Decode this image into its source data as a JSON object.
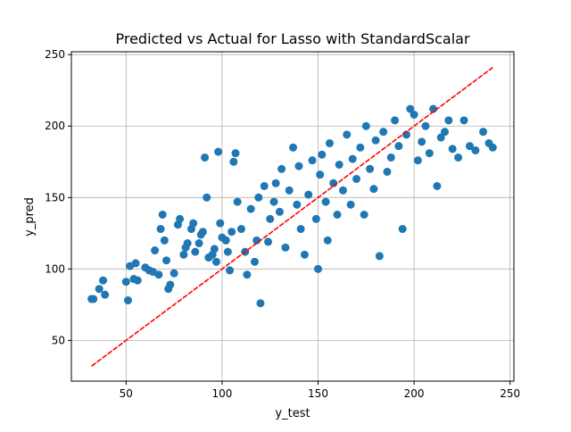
{
  "chart_data": {
    "type": "scatter",
    "title": "Predicted vs Actual for Lasso with StandardScalar",
    "xlabel": "y_test",
    "ylabel": "y_pred",
    "xlim": [
      21.5,
      252.0
    ],
    "ylim": [
      21.5,
      252.0
    ],
    "xticks": [
      50,
      100,
      150,
      200,
      250
    ],
    "yticks": [
      50,
      100,
      150,
      200,
      250
    ],
    "grid": true,
    "legend": "none",
    "colors": {
      "points": "#1f77b4",
      "fit_line": "#ff0000",
      "grid": "#b0b0b0"
    },
    "fit_line": {
      "x": [
        32,
        241
      ],
      "y": [
        32,
        241
      ],
      "style": "dashed"
    },
    "series": [
      {
        "values": [
          [
            32,
            79
          ],
          [
            33,
            79
          ],
          [
            36,
            86
          ],
          [
            38,
            92
          ],
          [
            39,
            82
          ],
          [
            50,
            91
          ],
          [
            51,
            78
          ],
          [
            52,
            102
          ],
          [
            54,
            93
          ],
          [
            55,
            104
          ],
          [
            56,
            92
          ],
          [
            60,
            101
          ],
          [
            62,
            99
          ],
          [
            64,
            98
          ],
          [
            65,
            113
          ],
          [
            67,
            96
          ],
          [
            68,
            128
          ],
          [
            69,
            138
          ],
          [
            70,
            120
          ],
          [
            71,
            106
          ],
          [
            72,
            86
          ],
          [
            73,
            89
          ],
          [
            75,
            97
          ],
          [
            77,
            131
          ],
          [
            78,
            135
          ],
          [
            80,
            110
          ],
          [
            81,
            115
          ],
          [
            82,
            118
          ],
          [
            84,
            128
          ],
          [
            85,
            132
          ],
          [
            86,
            112
          ],
          [
            88,
            118
          ],
          [
            89,
            124
          ],
          [
            90,
            126
          ],
          [
            91,
            178
          ],
          [
            92,
            150
          ],
          [
            93,
            108
          ],
          [
            95,
            110
          ],
          [
            96,
            114
          ],
          [
            97,
            105
          ],
          [
            98,
            182
          ],
          [
            99,
            132
          ],
          [
            100,
            122
          ],
          [
            102,
            120
          ],
          [
            103,
            112
          ],
          [
            104,
            99
          ],
          [
            105,
            126
          ],
          [
            106,
            175
          ],
          [
            107,
            181
          ],
          [
            108,
            147
          ],
          [
            110,
            128
          ],
          [
            112,
            112
          ],
          [
            113,
            96
          ],
          [
            115,
            142
          ],
          [
            117,
            105
          ],
          [
            118,
            120
          ],
          [
            119,
            150
          ],
          [
            120,
            76
          ],
          [
            122,
            158
          ],
          [
            124,
            119
          ],
          [
            125,
            135
          ],
          [
            127,
            147
          ],
          [
            128,
            160
          ],
          [
            130,
            140
          ],
          [
            131,
            170
          ],
          [
            133,
            115
          ],
          [
            135,
            155
          ],
          [
            137,
            185
          ],
          [
            139,
            145
          ],
          [
            140,
            172
          ],
          [
            141,
            128
          ],
          [
            143,
            110
          ],
          [
            145,
            152
          ],
          [
            147,
            176
          ],
          [
            149,
            135
          ],
          [
            150,
            100
          ],
          [
            151,
            166
          ],
          [
            152,
            180
          ],
          [
            154,
            147
          ],
          [
            155,
            120
          ],
          [
            156,
            188
          ],
          [
            158,
            160
          ],
          [
            160,
            138
          ],
          [
            161,
            173
          ],
          [
            163,
            155
          ],
          [
            165,
            194
          ],
          [
            167,
            145
          ],
          [
            168,
            177
          ],
          [
            170,
            163
          ],
          [
            172,
            185
          ],
          [
            174,
            138
          ],
          [
            175,
            200
          ],
          [
            177,
            170
          ],
          [
            179,
            156
          ],
          [
            180,
            190
          ],
          [
            182,
            109
          ],
          [
            184,
            196
          ],
          [
            186,
            168
          ],
          [
            188,
            178
          ],
          [
            190,
            204
          ],
          [
            192,
            186
          ],
          [
            194,
            128
          ],
          [
            196,
            194
          ],
          [
            198,
            212
          ],
          [
            200,
            208
          ],
          [
            202,
            176
          ],
          [
            204,
            189
          ],
          [
            206,
            200
          ],
          [
            208,
            181
          ],
          [
            210,
            212
          ],
          [
            212,
            158
          ],
          [
            214,
            192
          ],
          [
            216,
            196
          ],
          [
            218,
            204
          ],
          [
            220,
            184
          ],
          [
            223,
            178
          ],
          [
            226,
            204
          ],
          [
            229,
            186
          ],
          [
            232,
            183
          ],
          [
            236,
            196
          ],
          [
            239,
            188
          ],
          [
            241,
            185
          ]
        ]
      }
    ]
  }
}
